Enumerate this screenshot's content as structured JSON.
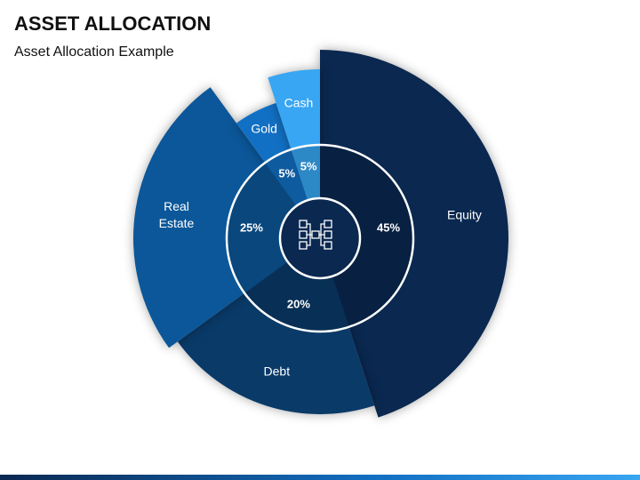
{
  "chart_data": {
    "type": "pie",
    "title": "ASSET ALLOCATION",
    "subtitle": "Asset Allocation Example",
    "categories": [
      "Equity",
      "Debt",
      "Real Estate",
      "Gold",
      "Cash"
    ],
    "values": [
      45,
      20,
      25,
      5,
      5
    ],
    "value_labels": [
      "45%",
      "20%",
      "25%",
      "5%",
      "5%"
    ],
    "colors": [
      "#0a2850",
      "#0a3a68",
      "#0b5799",
      "#1270c4",
      "#38a6f2"
    ]
  }
}
